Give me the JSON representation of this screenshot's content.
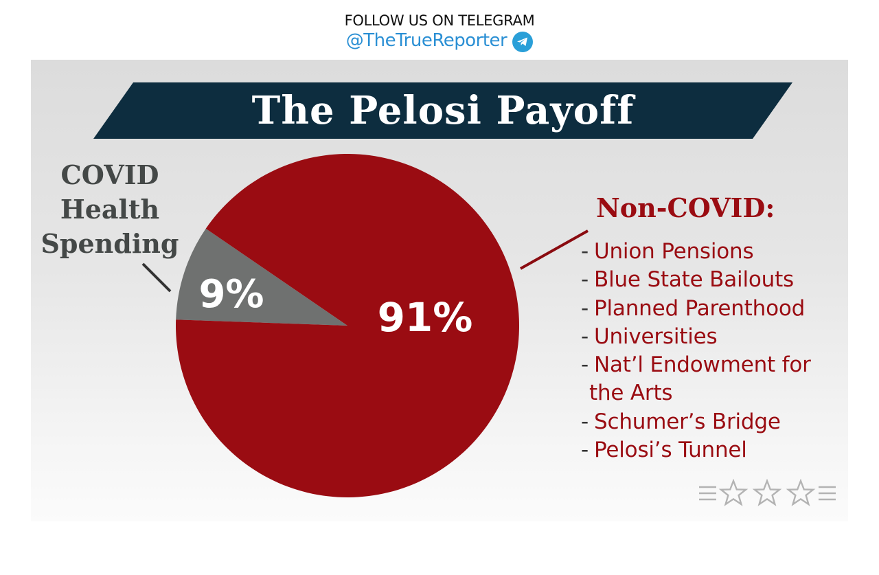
{
  "header": {
    "follow_text": "FOLLOW US ON TELEGRAM",
    "handle": "@TheTrueReporter",
    "telegram_icon": "telegram-icon",
    "handle_color": "#2a8fd4"
  },
  "banner": {
    "title": "The Pelosi Payoff",
    "color": "#0d2d3f"
  },
  "chart_data": {
    "type": "pie",
    "title": "The Pelosi Payoff",
    "slices": [
      {
        "label": "COVID Health Spending",
        "value": 9,
        "value_label": "9%",
        "color": "#6f7170"
      },
      {
        "label": "Non-COVID:",
        "value": 91,
        "value_label": "91%",
        "color": "#9a0c12"
      }
    ],
    "legend": "none",
    "grid": false
  },
  "labels": {
    "covid_lines": [
      "COVID",
      "Health",
      "Spending"
    ],
    "noncovid_title": "Non-COVID:",
    "noncovid_items": [
      {
        "dash": "-",
        "text": "Union Pensions"
      },
      {
        "dash": "-",
        "text": "Blue State Bailouts"
      },
      {
        "dash": "-",
        "text": "Planned Parenthood"
      },
      {
        "dash": "-",
        "text": "Universities"
      },
      {
        "dash": "-",
        "text": "Nat’l Endowment for"
      },
      {
        "dash": "",
        "text": "the Arts"
      },
      {
        "dash": "-",
        "text": "Schumer’s Bridge"
      },
      {
        "dash": "-",
        "text": "Pelosi’s Tunnel"
      }
    ]
  },
  "decor": {
    "stars_icon": "stars-divider-icon",
    "star_count": 3
  }
}
